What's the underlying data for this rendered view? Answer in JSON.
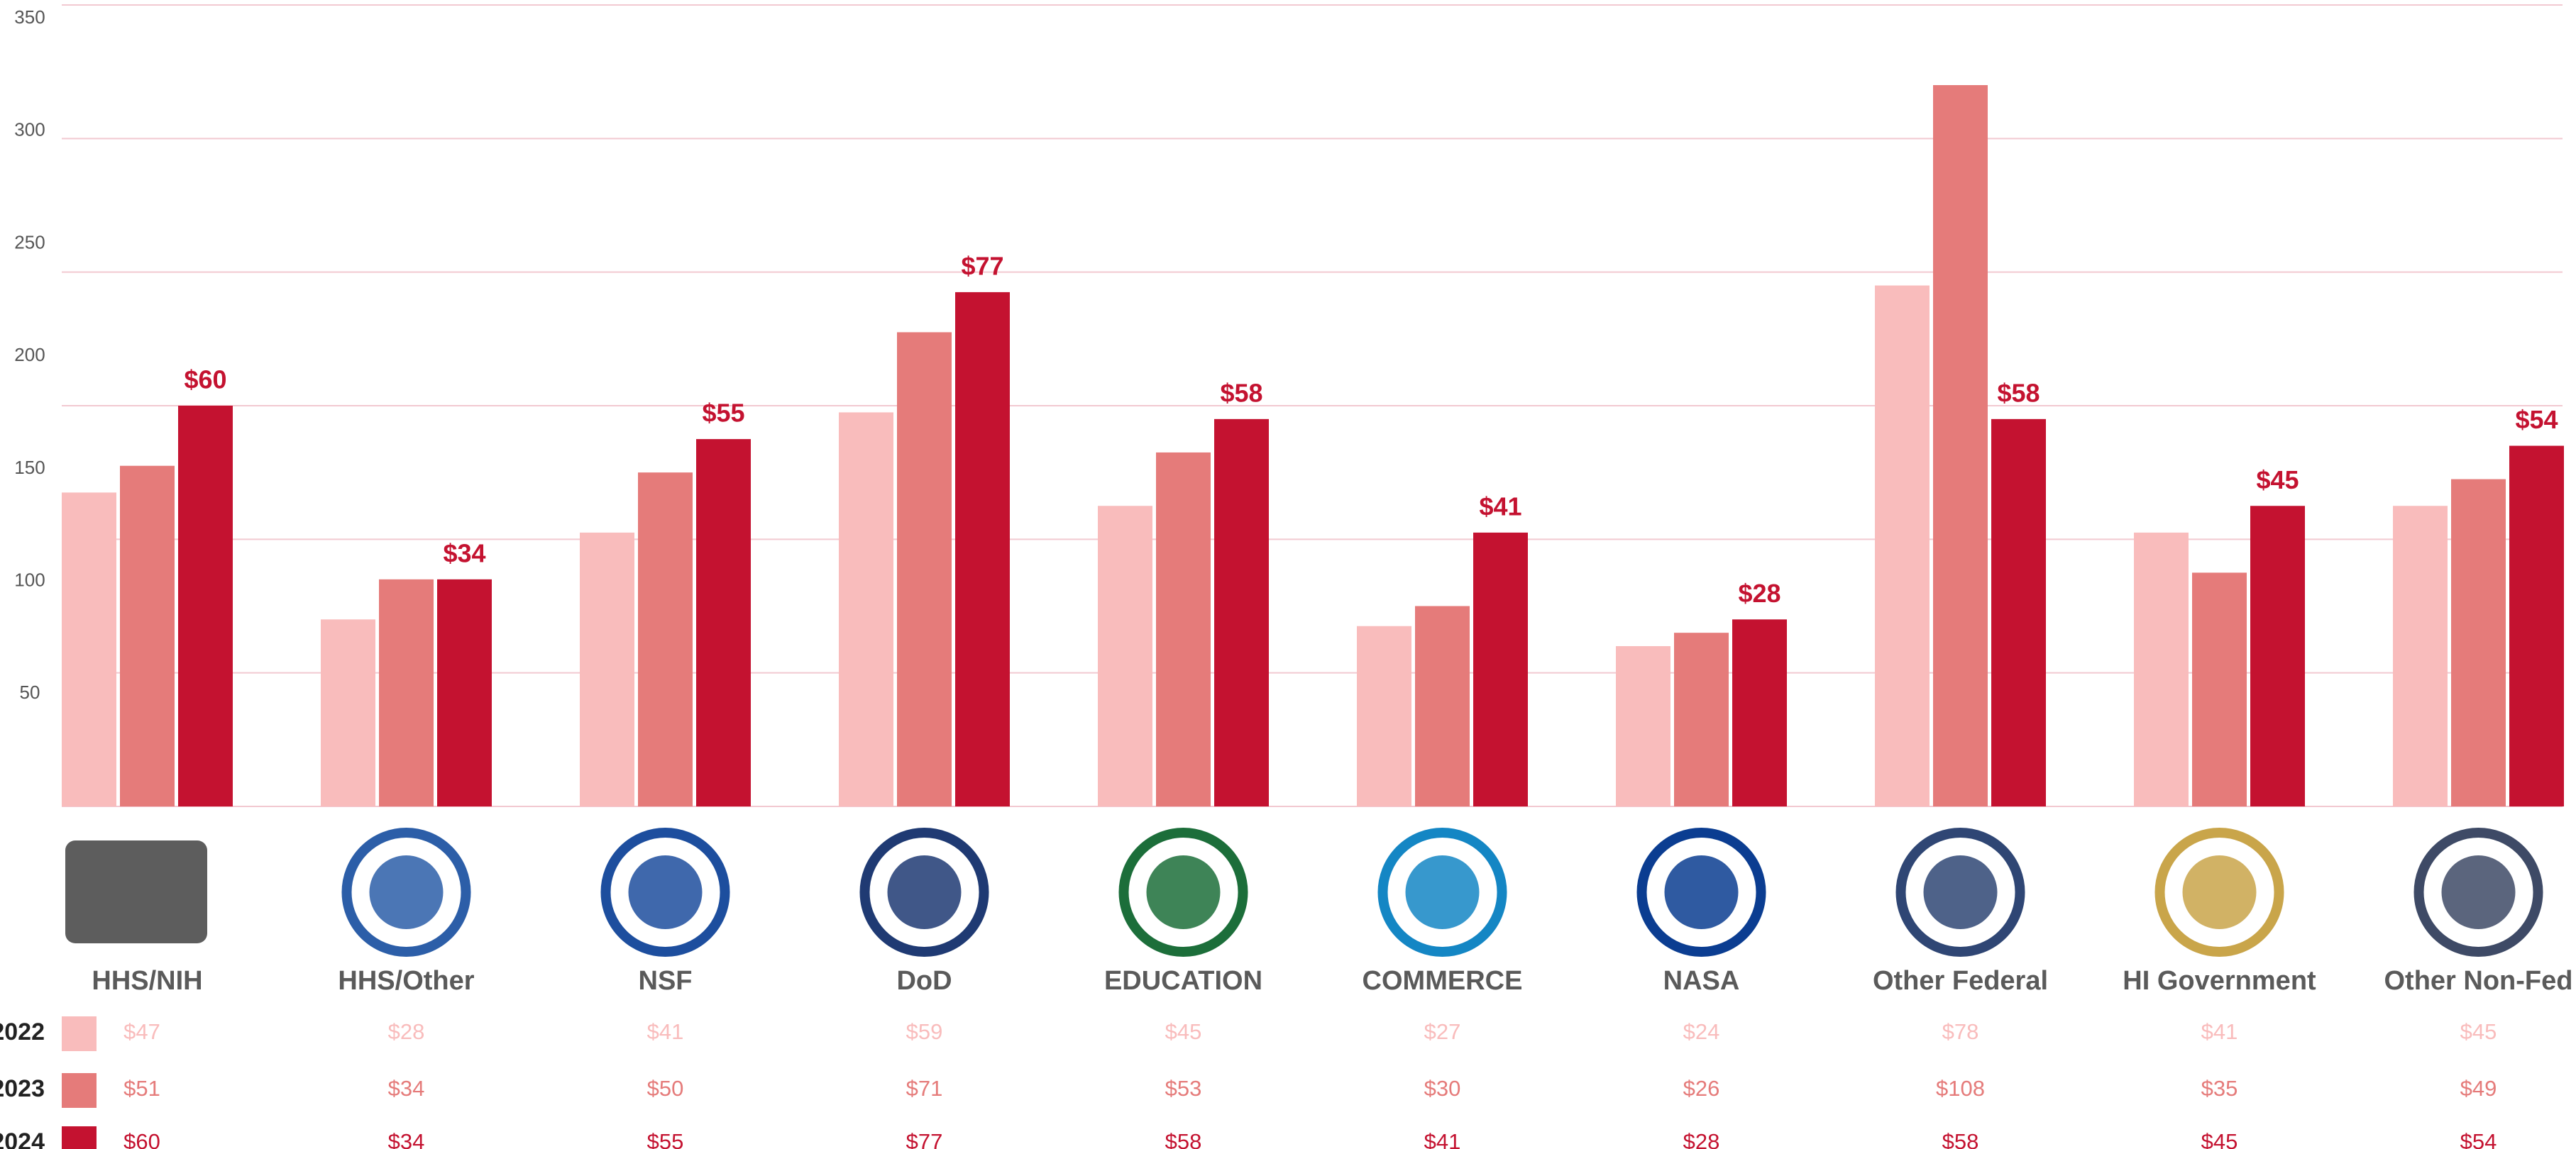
{
  "chart_data": {
    "type": "bar",
    "categories": [
      "HHS/NIH",
      "HHS/Other",
      "NSF",
      "DoD",
      "EDUCATION",
      "COMMERCE",
      "NASA",
      "Other Federal",
      "HI Government",
      "Other Non-Fed"
    ],
    "series": [
      {
        "name": "2022",
        "color": "#f9bcbc",
        "values": [
          47,
          28,
          41,
          59,
          45,
          27,
          24,
          78,
          41,
          45
        ],
        "value_labels": [
          "$47",
          "$28",
          "$41",
          "$59",
          "$45",
          "$27",
          "$24",
          "$78",
          "$41",
          "$45"
        ]
      },
      {
        "name": "2023",
        "color": "#e57b7a",
        "values": [
          51,
          34,
          50,
          71,
          53,
          30,
          26,
          108,
          35,
          49
        ],
        "value_labels": [
          "$51",
          "$34",
          "$50",
          "$71",
          "$53",
          "$30",
          "$26",
          "$108",
          "$35",
          "$49"
        ]
      },
      {
        "name": "2024",
        "color": "#c41230",
        "values": [
          60,
          34,
          55,
          77,
          58,
          41,
          28,
          58,
          45,
          54
        ],
        "value_labels": [
          "$60",
          "$34",
          "$55",
          "$77",
          "$58",
          "$41",
          "$28",
          "$58",
          "$45",
          "$54"
        ]
      }
    ],
    "ylim": [
      0,
      120
    ],
    "yticks": [
      0,
      20,
      40,
      60,
      80,
      100,
      120
    ],
    "y2lim": [
      0,
      356
    ],
    "y2ticks": [
      50,
      100,
      150,
      200,
      250,
      300,
      350
    ],
    "grid": true,
    "grid_color": "#f2c9d1"
  }
}
